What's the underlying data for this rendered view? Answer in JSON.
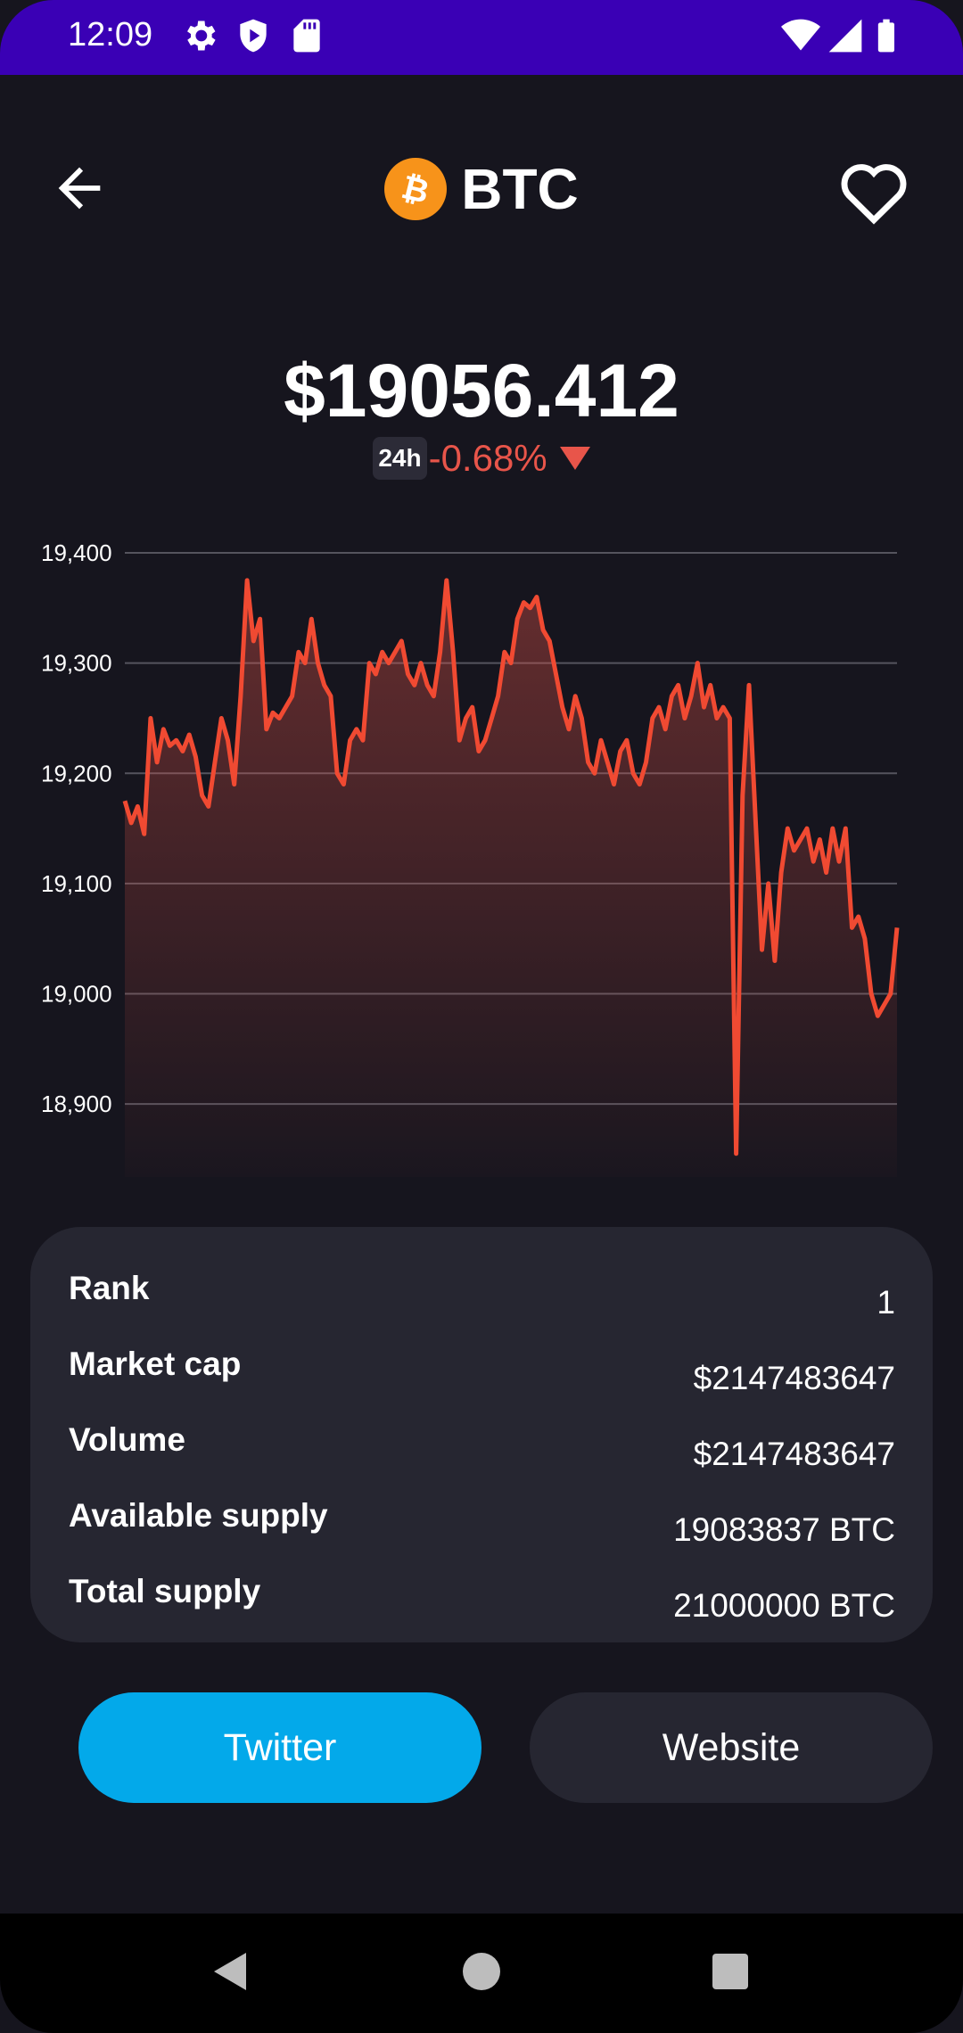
{
  "status_bar": {
    "time": "12:09",
    "icons": [
      "gear-icon",
      "shield-icon",
      "sd-card-icon",
      "wifi-icon",
      "signal-icon",
      "battery-icon"
    ]
  },
  "header": {
    "back_icon": "arrow-left-icon",
    "coin_symbol": "BTC",
    "coin_icon": "bitcoin-icon",
    "favorite_icon": "heart-outline-icon"
  },
  "price": {
    "value": "$19056.412",
    "period": "24h",
    "change": "-0.68%",
    "direction_icon": "triangle-down-icon"
  },
  "chart_data": {
    "type": "area",
    "ylim": [
      18850,
      19400
    ],
    "yticks": [
      "19,400",
      "19,300",
      "19,200",
      "19,100",
      "19,000",
      "18,900"
    ],
    "ytick_values": [
      19400,
      19300,
      19200,
      19100,
      19000,
      18900
    ],
    "grid": true,
    "line_color": "#f04a32",
    "values": [
      19175,
      19155,
      19170,
      19145,
      19250,
      19210,
      19240,
      19225,
      19230,
      19220,
      19235,
      19215,
      19180,
      19170,
      19210,
      19250,
      19230,
      19190,
      19270,
      19375,
      19320,
      19340,
      19240,
      19255,
      19250,
      19260,
      19270,
      19310,
      19300,
      19340,
      19300,
      19280,
      19270,
      19200,
      19190,
      19230,
      19240,
      19230,
      19300,
      19290,
      19310,
      19300,
      19310,
      19320,
      19290,
      19280,
      19300,
      19280,
      19270,
      19310,
      19375,
      19310,
      19230,
      19250,
      19260,
      19220,
      19230,
      19250,
      19270,
      19310,
      19300,
      19340,
      19355,
      19350,
      19360,
      19330,
      19320,
      19290,
      19260,
      19240,
      19270,
      19250,
      19210,
      19200,
      19230,
      19210,
      19190,
      19220,
      19230,
      19200,
      19190,
      19210,
      19250,
      19260,
      19240,
      19270,
      19280,
      19250,
      19270,
      19300,
      19260,
      19280,
      19250,
      19260,
      19250,
      18855,
      19180,
      19280,
      19160,
      19040,
      19100,
      19030,
      19110,
      19150,
      19130,
      19140,
      19150,
      19120,
      19140,
      19110,
      19150,
      19120,
      19150,
      19060,
      19070,
      19050,
      19000,
      18980,
      18990,
      19000,
      19060
    ]
  },
  "stats": [
    {
      "label": "Rank",
      "value": "1"
    },
    {
      "label": "Market cap",
      "value": "$2147483647"
    },
    {
      "label": "Volume",
      "value": "$2147483647"
    },
    {
      "label": "Available supply",
      "value": "19083837 BTC"
    },
    {
      "label": "Total supply",
      "value": "21000000 BTC"
    }
  ],
  "buttons": {
    "twitter": "Twitter",
    "website": "Website"
  },
  "colors": {
    "background": "#16151e",
    "status_bar": "#3a00b5",
    "card": "#262631",
    "accent_twitter": "#03a9ea",
    "negative": "#e8554a",
    "bitcoin": "#f7931a"
  }
}
